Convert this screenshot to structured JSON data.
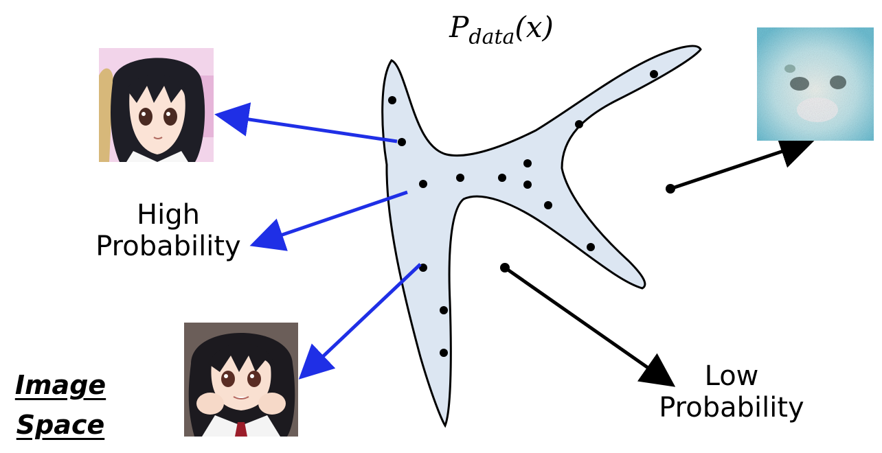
{
  "diagram": {
    "distribution_label": {
      "base": "P",
      "subscript": "data",
      "argument": "(x)"
    },
    "high_probability_label": [
      "High",
      "Probability"
    ],
    "low_probability_label": [
      "Low",
      "Probability"
    ],
    "image_space_label": [
      "Image",
      "Space"
    ],
    "colors": {
      "region_fill": "#dce6f2",
      "region_stroke": "#000000",
      "high_prob_arrow": "#1f2fe6",
      "low_prob_arrow": "#000000",
      "point": "#000000"
    },
    "thumbnails": [
      {
        "name": "anime-girl-portrait-pink-background",
        "kind": "high-probability sample"
      },
      {
        "name": "anime-girl-hands-on-cheeks",
        "kind": "high-probability sample"
      },
      {
        "name": "noisy-blurry-image",
        "kind": "low-probability sample"
      }
    ]
  }
}
